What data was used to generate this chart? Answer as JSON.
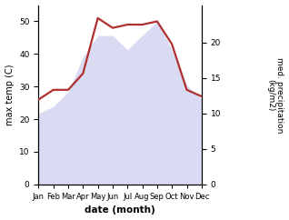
{
  "months": [
    "Jan",
    "Feb",
    "Mar",
    "Apr",
    "May",
    "Jun",
    "Jul",
    "Aug",
    "Sep",
    "Oct",
    "Nov",
    "Dec"
  ],
  "month_indices": [
    1,
    2,
    3,
    4,
    5,
    6,
    7,
    8,
    9,
    10,
    11,
    12
  ],
  "temperature": [
    26,
    29,
    29,
    34,
    51,
    48,
    49,
    49,
    50,
    43,
    29,
    27
  ],
  "precipitation": [
    10,
    11,
    13,
    18,
    21,
    21,
    19,
    21,
    23,
    19,
    14,
    12
  ],
  "temp_ylim": [
    0,
    55
  ],
  "precip_ylim": [
    0,
    25.3
  ],
  "temp_yticks": [
    0,
    10,
    20,
    30,
    40,
    50
  ],
  "precip_yticks": [
    0,
    5,
    10,
    15,
    20
  ],
  "temp_color": "#b03030",
  "precip_fill_color": "#b8bfe8",
  "xlabel": "date (month)",
  "ylabel_left": "max temp (C)",
  "ylabel_right": "med. precipitation\n(kg/m2)",
  "background_color": "#ffffff",
  "temp_linewidth": 1.6,
  "precip_alpha": 0.55,
  "figsize": [
    3.18,
    2.42
  ],
  "dpi": 100
}
